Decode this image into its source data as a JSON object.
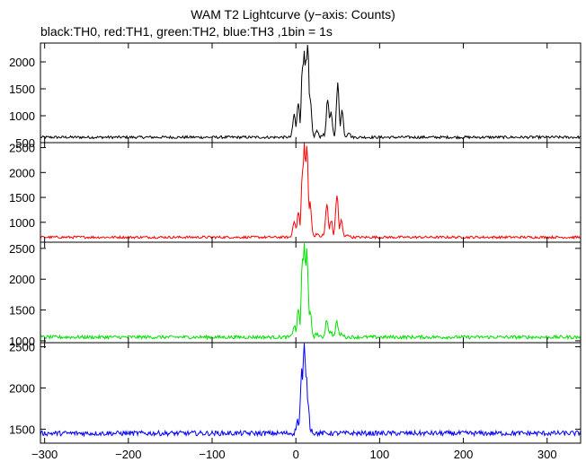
{
  "chart_data": {
    "type": "line",
    "title": "WAM T2 Lightcurve (y−axis: Counts)",
    "subtitle": "black:TH0, red:TH1, green:TH2, blue:TH3 ,1bin = 1s",
    "xlim": [
      -305,
      340
    ],
    "x_ticks": [
      -300,
      -200,
      -100,
      0,
      100,
      200,
      300
    ],
    "x_tick_labels": [
      "−300",
      "−200",
      "−100",
      "0",
      "100",
      "200",
      "300"
    ],
    "grid": false,
    "panels": [
      {
        "color": "#000000",
        "ylim": [
          500,
          2350
        ],
        "y_ticks": [
          500,
          1000,
          1500,
          2000
        ],
        "y_tick_labels": [
          "500",
          "1000",
          "1500",
          "2000"
        ],
        "baseline": 600,
        "noise": 25,
        "peaks": [
          {
            "x": -2,
            "y": 1020
          },
          {
            "x": 3,
            "y": 1250
          },
          {
            "x": 8,
            "y": 1900
          },
          {
            "x": 10,
            "y": 2300
          },
          {
            "x": 12,
            "y": 1950
          },
          {
            "x": 14,
            "y": 2300
          },
          {
            "x": 17,
            "y": 1300
          },
          {
            "x": 25,
            "y": 720
          },
          {
            "x": 32,
            "y": 650
          },
          {
            "x": 38,
            "y": 1300
          },
          {
            "x": 42,
            "y": 1050
          },
          {
            "x": 50,
            "y": 1570
          },
          {
            "x": 55,
            "y": 1100
          },
          {
            "x": 63,
            "y": 700
          }
        ]
      },
      {
        "color": "#ff0000",
        "ylim": [
          600,
          2600
        ],
        "y_ticks": [
          1000,
          1500,
          2000,
          2500
        ],
        "y_tick_labels": [
          "1000",
          "1500",
          "2000",
          "2500"
        ],
        "baseline": 700,
        "noise": 25,
        "peaks": [
          {
            "x": -2,
            "y": 1050
          },
          {
            "x": 3,
            "y": 1200
          },
          {
            "x": 8,
            "y": 2000
          },
          {
            "x": 10,
            "y": 2600
          },
          {
            "x": 13,
            "y": 2550
          },
          {
            "x": 17,
            "y": 1400
          },
          {
            "x": 25,
            "y": 780
          },
          {
            "x": 32,
            "y": 740
          },
          {
            "x": 37,
            "y": 1350
          },
          {
            "x": 42,
            "y": 1050
          },
          {
            "x": 49,
            "y": 1550
          },
          {
            "x": 54,
            "y": 1050
          },
          {
            "x": 62,
            "y": 760
          }
        ]
      },
      {
        "color": "#00e000",
        "ylim": [
          970,
          2600
        ],
        "y_ticks": [
          1000,
          1500,
          2000,
          2500
        ],
        "y_tick_labels": [
          "1000",
          "1500",
          "2000",
          "2500"
        ],
        "baseline": 1060,
        "noise": 28,
        "peaks": [
          {
            "x": -2,
            "y": 1250
          },
          {
            "x": 3,
            "y": 1500
          },
          {
            "x": 8,
            "y": 2300
          },
          {
            "x": 10,
            "y": 2550
          },
          {
            "x": 13,
            "y": 2550
          },
          {
            "x": 17,
            "y": 1450
          },
          {
            "x": 25,
            "y": 1120
          },
          {
            "x": 37,
            "y": 1350
          },
          {
            "x": 42,
            "y": 1150
          },
          {
            "x": 49,
            "y": 1300
          },
          {
            "x": 55,
            "y": 1120
          }
        ]
      },
      {
        "color": "#0000ff",
        "ylim": [
          1330,
          2550
        ],
        "y_ticks": [
          1500,
          2000,
          2500
        ],
        "y_tick_labels": [
          "1500",
          "2000",
          "2500"
        ],
        "baseline": 1450,
        "noise": 30,
        "peaks": [
          {
            "x": 2,
            "y": 1600
          },
          {
            "x": 7,
            "y": 2200
          },
          {
            "x": 10,
            "y": 2500
          },
          {
            "x": 12,
            "y": 2200
          },
          {
            "x": 14,
            "y": 1900
          },
          {
            "x": 18,
            "y": 1500
          }
        ]
      }
    ]
  }
}
